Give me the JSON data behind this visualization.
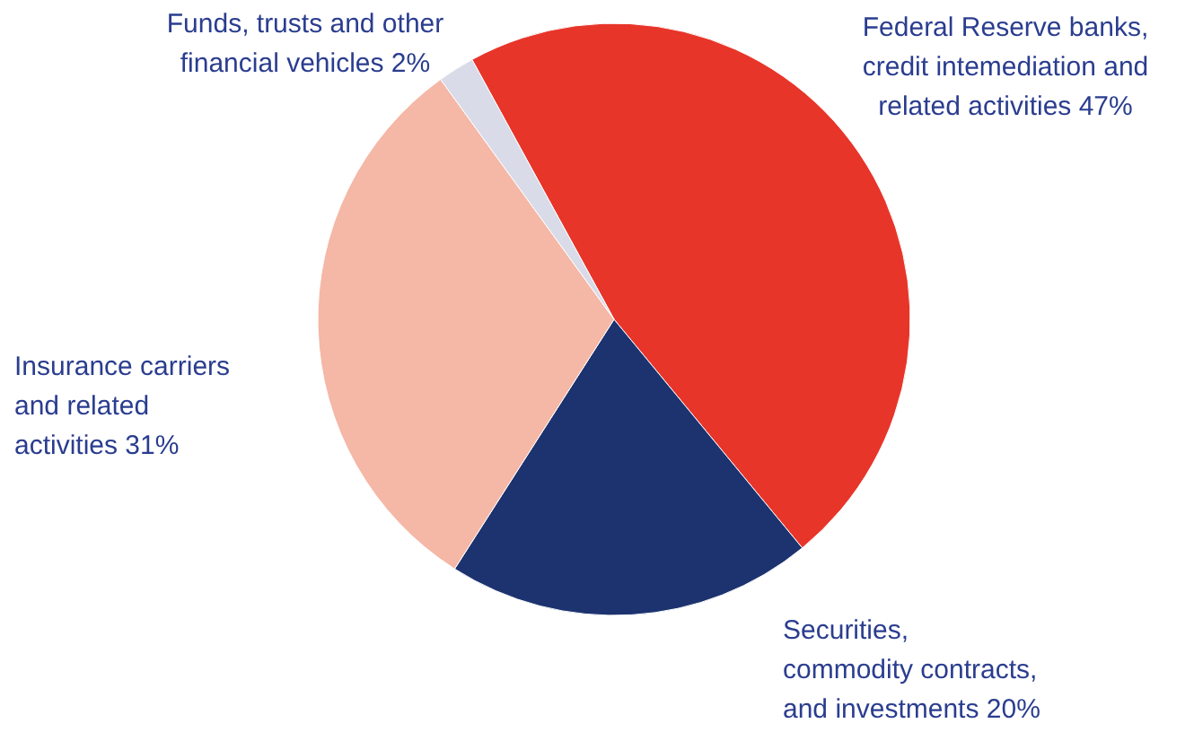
{
  "chart_data": {
    "type": "pie",
    "categories": [
      "Federal Reserve banks, credit intemediation and related activities 47%",
      "Securities, commodity contracts, and investments 20%",
      "Insurance carriers and related activities 31%",
      "Funds, trusts and other financial vehicles 2%"
    ],
    "values": [
      47,
      20,
      31,
      2
    ],
    "colors": [
      "#e8352a",
      "#1d3370",
      "#f5b7a6",
      "#d9dbe8"
    ]
  }
}
